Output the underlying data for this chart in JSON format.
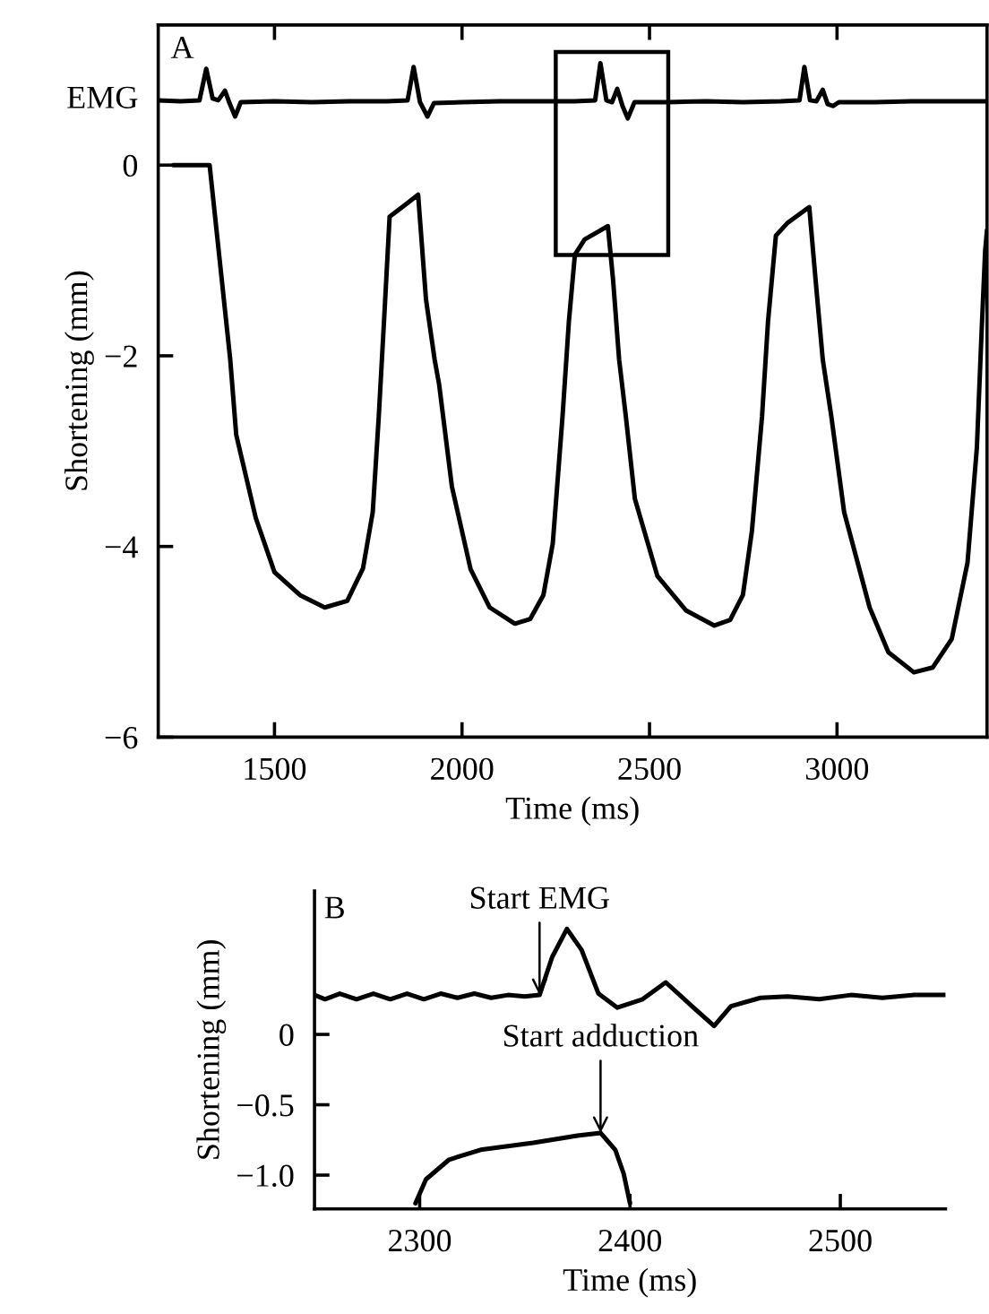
{
  "chart_data": [
    {
      "type": "line",
      "title": "A",
      "xlabel": "Time (ms)",
      "ylabel": "Shortening (mm)",
      "xlim": [
        1190,
        3400
      ],
      "xticks": [
        1500,
        2000,
        2500,
        3000
      ],
      "ylim": [
        -6,
        1.47
      ],
      "yticks": [
        {
          "value": 0,
          "label": "0"
        },
        {
          "value": -2,
          "label": "−2"
        },
        {
          "value": -4,
          "label": "−4"
        },
        {
          "value": -6,
          "label": "−6"
        }
      ],
      "grid": false,
      "legend": false,
      "series": [
        {
          "name": "EMG",
          "color": "#000000",
          "x": [
            1190,
            1250,
            1300,
            1318,
            1335,
            1350,
            1368,
            1380,
            1395,
            1410,
            1500,
            1600,
            1700,
            1800,
            1855,
            1871,
            1888,
            1908,
            1925,
            2000,
            2100,
            2200,
            2300,
            2355,
            2369,
            2385,
            2400,
            2414,
            2428,
            2442,
            2460,
            2550,
            2650,
            2750,
            2850,
            2900,
            2913,
            2928,
            2945,
            2962,
            2975,
            2989,
            3005,
            3100,
            3200,
            3300,
            3400
          ],
          "values": [
            0.68,
            0.67,
            0.68,
            1.01,
            0.7,
            0.68,
            0.78,
            0.65,
            0.51,
            0.66,
            0.67,
            0.66,
            0.67,
            0.67,
            0.68,
            1.03,
            0.66,
            0.51,
            0.65,
            0.66,
            0.67,
            0.67,
            0.67,
            0.68,
            1.07,
            0.68,
            0.66,
            0.8,
            0.62,
            0.49,
            0.66,
            0.66,
            0.67,
            0.66,
            0.67,
            0.68,
            1.03,
            0.68,
            0.67,
            0.79,
            0.64,
            0.62,
            0.66,
            0.66,
            0.67,
            0.67,
            0.67
          ]
        },
        {
          "color": "#000000",
          "x": [
            1230,
            1327,
            1382,
            1398,
            1450,
            1500,
            1568,
            1634,
            1694,
            1736,
            1762,
            1778,
            1792,
            1807,
            1854,
            1883,
            1904,
            1927,
            1939,
            1973,
            2023,
            2074,
            2141,
            2182,
            2217,
            2242,
            2268,
            2285,
            2301,
            2327,
            2389,
            2403,
            2419,
            2437,
            2461,
            2521,
            2597,
            2673,
            2715,
            2749,
            2773,
            2800,
            2816,
            2837,
            2867,
            2926,
            2943,
            2962,
            2985,
            3019,
            3087,
            3137,
            3205,
            3255,
            3306,
            3348,
            3373,
            3385,
            3395,
            3400
          ],
          "values": [
            0,
            0,
            -2.04,
            -2.83,
            -3.7,
            -4.27,
            -4.51,
            -4.64,
            -4.57,
            -4.23,
            -3.64,
            -2.64,
            -1.64,
            -0.54,
            -0.4,
            -0.31,
            -1.41,
            -2.04,
            -2.3,
            -3.37,
            -4.24,
            -4.64,
            -4.81,
            -4.76,
            -4.51,
            -3.97,
            -2.64,
            -1.64,
            -0.94,
            -0.78,
            -0.64,
            -1.21,
            -2.04,
            -2.64,
            -3.5,
            -4.31,
            -4.67,
            -4.83,
            -4.77,
            -4.51,
            -3.84,
            -2.64,
            -1.64,
            -0.74,
            -0.61,
            -0.44,
            -1.21,
            -2.04,
            -2.64,
            -3.64,
            -4.64,
            -5.11,
            -5.32,
            -5.27,
            -4.97,
            -4.17,
            -2.96,
            -1.8,
            -0.9,
            -0.68
          ]
        }
      ]
    },
    {
      "type": "line",
      "title": "B",
      "xlabel": "Time (ms)",
      "ylabel": "Shortening (mm)",
      "xlim": [
        2250,
        2550
      ],
      "xticks": [
        2300,
        2400,
        2500
      ],
      "ylim": [
        -1.24,
        1.02
      ],
      "yticks": [
        {
          "value": 0,
          "label": "0"
        },
        {
          "value": -0.5,
          "label": "−0.5"
        },
        {
          "value": -1.0,
          "label": "−1.0"
        }
      ],
      "grid": false,
      "legend": false,
      "annotations": [
        {
          "text": "Start EMG",
          "x": 2357,
          "y": 0.28
        },
        {
          "text": "Start adduction",
          "x": 2386,
          "y": -0.7
        }
      ],
      "series": [
        {
          "color": "#000000",
          "x": [
            2250,
            2255,
            2262,
            2270,
            2278,
            2286,
            2294,
            2302,
            2310,
            2318,
            2326,
            2334,
            2342,
            2350,
            2357,
            2363,
            2370,
            2377,
            2385,
            2394,
            2406,
            2417,
            2431,
            2440,
            2448,
            2462,
            2475,
            2490,
            2505,
            2520,
            2535,
            2550
          ],
          "values": [
            0.28,
            0.25,
            0.29,
            0.25,
            0.29,
            0.25,
            0.29,
            0.25,
            0.29,
            0.26,
            0.29,
            0.26,
            0.28,
            0.27,
            0.28,
            0.55,
            0.75,
            0.6,
            0.29,
            0.19,
            0.25,
            0.37,
            0.18,
            0.06,
            0.2,
            0.26,
            0.27,
            0.25,
            0.28,
            0.26,
            0.28,
            0.28
          ]
        },
        {
          "color": "#000000",
          "x": [
            2298,
            2303,
            2314,
            2329,
            2354,
            2375,
            2386,
            2393,
            2397,
            2400
          ],
          "values": [
            -1.2,
            -1.03,
            -0.89,
            -0.82,
            -0.77,
            -0.72,
            -0.7,
            -0.82,
            -0.99,
            -1.2
          ]
        }
      ]
    }
  ]
}
